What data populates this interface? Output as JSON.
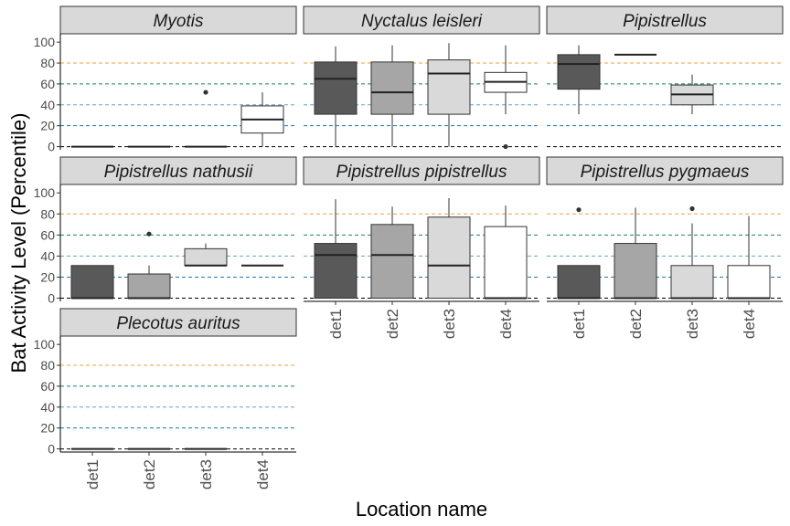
{
  "chart_data": {
    "type": "box",
    "ylabel": "Bat Activity Level (Percentile)",
    "xlabel": "Location name",
    "categories": [
      "det1",
      "det2",
      "det3",
      "det4"
    ],
    "ylim": [
      -3,
      108
    ],
    "yticks": [
      0,
      20,
      40,
      60,
      80,
      100
    ],
    "reference_lines": [
      {
        "y": 0,
        "color": "#000000"
      },
      {
        "y": 20,
        "color": "#1f78b4"
      },
      {
        "y": 40,
        "color": "#5fa8c8"
      },
      {
        "y": 60,
        "color": "#1b7f6f"
      },
      {
        "y": 80,
        "color": "#e8a33a"
      }
    ],
    "fills": [
      "#595959",
      "#a6a6a6",
      "#d9d9d9",
      "#ffffff"
    ],
    "strip_fill": "#d9d9d9",
    "panels": [
      {
        "title": "Myotis",
        "boxes": [
          {
            "cat": "det1",
            "min": 0,
            "q1": 0,
            "median": 0,
            "q3": 0,
            "max": 0,
            "outliers": []
          },
          {
            "cat": "det2",
            "min": 0,
            "q1": 0,
            "median": 0,
            "q3": 0,
            "max": 0,
            "outliers": []
          },
          {
            "cat": "det3",
            "min": 0,
            "q1": 0,
            "median": 0,
            "q3": 0,
            "max": 0,
            "outliers": [
              52
            ]
          },
          {
            "cat": "det4",
            "min": 0,
            "q1": 13,
            "median": 26,
            "q3": 39,
            "max": 52,
            "outliers": []
          }
        ]
      },
      {
        "title": "Nyctalus leisleri",
        "boxes": [
          {
            "cat": "det1",
            "min": 0,
            "q1": 31,
            "median": 65,
            "q3": 81,
            "max": 96,
            "outliers": []
          },
          {
            "cat": "det2",
            "min": 0,
            "q1": 31,
            "median": 52,
            "q3": 81,
            "max": 97,
            "outliers": []
          },
          {
            "cat": "det3",
            "min": 0,
            "q1": 31,
            "median": 70,
            "q3": 83,
            "max": 99,
            "outliers": []
          },
          {
            "cat": "det4",
            "min": 31,
            "q1": 52,
            "median": 62,
            "q3": 71,
            "max": 97,
            "outliers": [
              0
            ]
          }
        ]
      },
      {
        "title": "Pipistrellus",
        "boxes": [
          {
            "cat": "det1",
            "min": 31,
            "q1": 55,
            "median": 79,
            "q3": 88,
            "max": 97,
            "outliers": []
          },
          {
            "cat": "det2",
            "min": 88,
            "q1": 88,
            "median": 88,
            "q3": 88,
            "max": 88,
            "outliers": []
          },
          {
            "cat": "det3",
            "min": 31,
            "q1": 40,
            "median": 50,
            "q3": 59,
            "max": 69,
            "outliers": []
          }
        ]
      },
      {
        "title": "Pipistrellus nathusii",
        "boxes": [
          {
            "cat": "det1",
            "min": 0,
            "q1": 0,
            "median": 0,
            "q3": 31,
            "max": 31,
            "outliers": []
          },
          {
            "cat": "det2",
            "min": 0,
            "q1": 0,
            "median": 0,
            "q3": 23,
            "max": 31,
            "outliers": [
              61
            ]
          },
          {
            "cat": "det3",
            "min": 31,
            "q1": 31,
            "median": 31,
            "q3": 47,
            "max": 52,
            "outliers": []
          },
          {
            "cat": "det4",
            "min": 31,
            "q1": 31,
            "median": 31,
            "q3": 31,
            "max": 31,
            "outliers": []
          }
        ]
      },
      {
        "title": "Pipistrellus pipistrellus",
        "boxes": [
          {
            "cat": "det1",
            "min": 0,
            "q1": 0,
            "median": 41,
            "q3": 52,
            "max": 94,
            "outliers": []
          },
          {
            "cat": "det2",
            "min": 0,
            "q1": 0,
            "median": 41,
            "q3": 70,
            "max": 87,
            "outliers": []
          },
          {
            "cat": "det3",
            "min": 0,
            "q1": 0,
            "median": 31,
            "q3": 77,
            "max": 95,
            "outliers": []
          },
          {
            "cat": "det4",
            "min": 0,
            "q1": 0,
            "median": 0,
            "q3": 68,
            "max": 88,
            "outliers": []
          }
        ]
      },
      {
        "title": "Pipistrellus pygmaeus",
        "boxes": [
          {
            "cat": "det1",
            "min": 0,
            "q1": 0,
            "median": 0,
            "q3": 31,
            "max": 31,
            "outliers": [
              84
            ]
          },
          {
            "cat": "det2",
            "min": 0,
            "q1": 0,
            "median": 0,
            "q3": 52,
            "max": 86,
            "outliers": []
          },
          {
            "cat": "det3",
            "min": 0,
            "q1": 0,
            "median": 0,
            "q3": 31,
            "max": 71,
            "outliers": [
              85
            ]
          },
          {
            "cat": "det4",
            "min": 0,
            "q1": 0,
            "median": 0,
            "q3": 31,
            "max": 78,
            "outliers": []
          }
        ]
      },
      {
        "title": "Plecotus auritus",
        "boxes": [
          {
            "cat": "det1",
            "min": 0,
            "q1": 0,
            "median": 0,
            "q3": 0,
            "max": 0,
            "outliers": []
          },
          {
            "cat": "det2",
            "min": 0,
            "q1": 0,
            "median": 0,
            "q3": 0,
            "max": 0,
            "outliers": []
          },
          {
            "cat": "det3",
            "min": 0,
            "q1": 0,
            "median": 0,
            "q3": 0,
            "max": 0,
            "outliers": []
          }
        ]
      }
    ]
  }
}
